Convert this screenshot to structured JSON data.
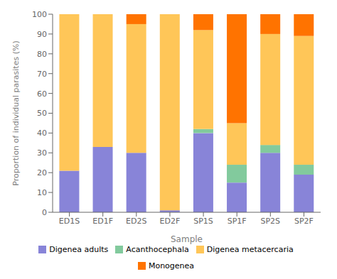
{
  "chart_data": {
    "type": "bar",
    "stacked": true,
    "xlabel": "Sample",
    "ylabel": "Proportion of individual parasites (%)",
    "categories": [
      "ED1S",
      "ED1F",
      "ED2S",
      "ED2F",
      "SP1S",
      "SP1F",
      "SP2S",
      "SP2F"
    ],
    "series": [
      {
        "name": "Digenea adults",
        "color": "#8884d8",
        "values": [
          21,
          33,
          30,
          1,
          40,
          15,
          30,
          19
        ]
      },
      {
        "name": "Acanthocephala",
        "color": "#82ca9d",
        "values": [
          0,
          0,
          0,
          0,
          2,
          9,
          4,
          5
        ]
      },
      {
        "name": "Digenea metacercaria",
        "color": "#ffc658",
        "values": [
          79,
          67,
          65,
          99,
          50,
          21,
          56,
          65
        ]
      },
      {
        "name": "Monogenea",
        "color": "#ff7300",
        "values": [
          0,
          0,
          5,
          0,
          8,
          55,
          10,
          11
        ]
      }
    ],
    "ylim": [
      0,
      100
    ],
    "yticks": [
      0,
      10,
      20,
      30,
      40,
      50,
      60,
      70,
      80,
      90,
      100
    ],
    "grid": false
  }
}
